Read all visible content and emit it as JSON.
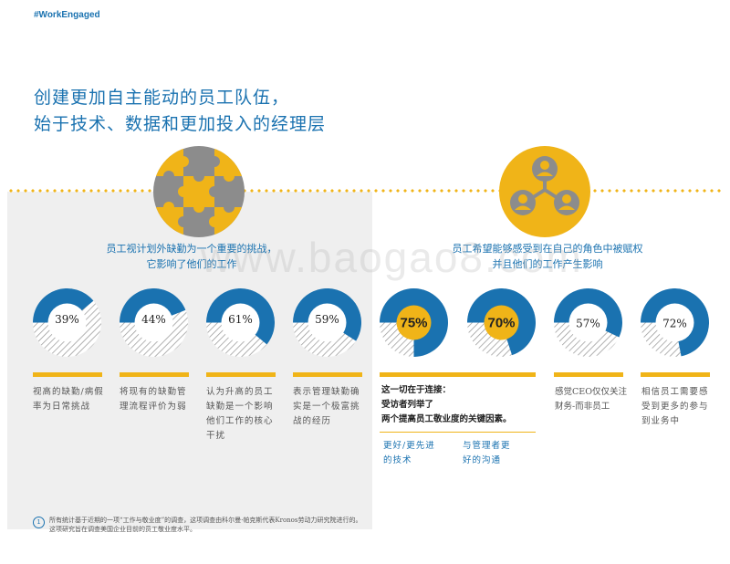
{
  "header": {
    "hashtag": "#WorkEngaged"
  },
  "title": {
    "line1": "创建更加自主能动的员工队伍，",
    "line2": "始于技术、数据和更加投入的经理层"
  },
  "left_panel": {
    "heading_line1": "员工视计划外缺勤为一个重要的挑战，",
    "heading_line2": "它影响了他们的工作",
    "icon": "puzzle-icon",
    "stats": [
      {
        "value": "39%",
        "fraction": 0.39,
        "caption": [
          "视高的缺勤/病假",
          "率为日常挑战"
        ]
      },
      {
        "value": "44%",
        "fraction": 0.44,
        "caption": [
          "将现有的缺勤管",
          "理流程评价为弱"
        ]
      },
      {
        "value": "61%",
        "fraction": 0.61,
        "caption": [
          "认为升高的员工",
          "缺勤是一个影响",
          "他们工作的核心",
          "干扰"
        ]
      },
      {
        "value": "59%",
        "fraction": 0.59,
        "caption": [
          "表示管理缺勤确",
          "实是一个极富挑",
          "战的经历"
        ]
      }
    ]
  },
  "right_panel": {
    "heading_line1": "员工希望能够感受到在自己的角色中被赋权",
    "heading_line2": "并且他们的工作产生影响",
    "icon": "people-network-icon",
    "stats": [
      {
        "value": "75%",
        "fraction": 0.75,
        "highlight": true
      },
      {
        "value": "70%",
        "fraction": 0.7,
        "highlight": true
      },
      {
        "value": "57%",
        "fraction": 0.57,
        "highlight": false,
        "caption": [
          "感觉CEO仅仅关注",
          "财务-而非员工"
        ]
      },
      {
        "value": "72%",
        "fraction": 0.72,
        "highlight": false,
        "caption": [
          "相信员工需要感",
          "受到更多的参与",
          "到业务中"
        ]
      }
    ],
    "connection_caption": [
      "这一切在于连接：",
      "受访者列举了",
      "两个提高员工敬业度的关键因素。"
    ],
    "factors": [
      [
        "更好/更先进",
        "的技术"
      ],
      [
        "与管理者更",
        "好的沟通"
      ]
    ]
  },
  "footnote": {
    "marker": "1",
    "line1": "所有统计基于近期的一项“工作与敬业度”的调查，这项调查由科尔曼·帕克斯代表Kronos劳动力研究院进行的。",
    "line2": "这项研究旨在调查美国企业目前的员工敬业度水平。"
  },
  "watermark": "www.baogao8.com",
  "colors": {
    "blue": "#1a72b0",
    "yellow": "#f0b418",
    "gray": "#8c8c8c",
    "panel": "#efefef"
  }
}
